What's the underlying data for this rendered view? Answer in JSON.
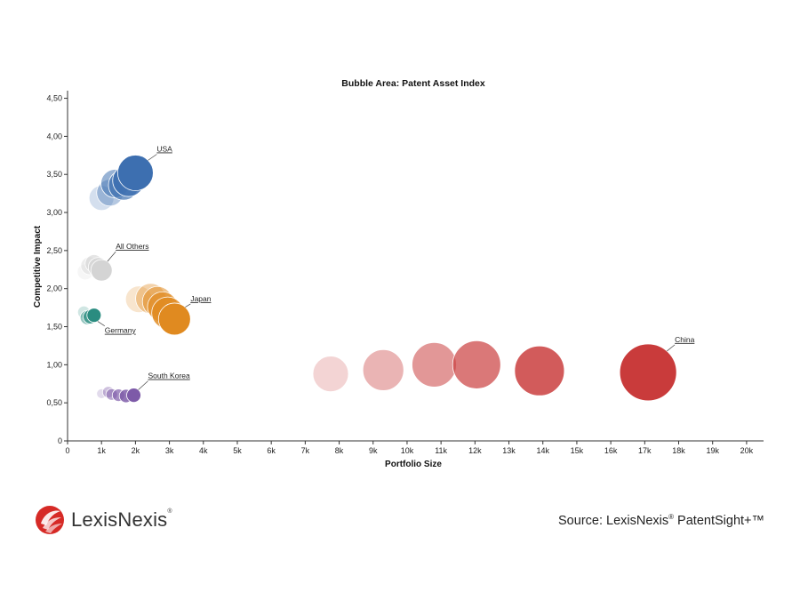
{
  "chart_data": {
    "type": "bubble",
    "title": "Bubble Area:  Patent Asset Index",
    "xlabel": "Portfolio Size",
    "ylabel": "Competitive Impact",
    "xlim": [
      0,
      20500
    ],
    "ylim": [
      0,
      4.6
    ],
    "x_ticks": [
      "0",
      "1k",
      "2k",
      "3k",
      "4k",
      "5k",
      "6k",
      "7k",
      "8k",
      "9k",
      "10k",
      "11k",
      "12k",
      "13k",
      "14k",
      "15k",
      "16k",
      "17k",
      "18k",
      "19k",
      "20k"
    ],
    "y_ticks": [
      "0",
      "0,50",
      "1,00",
      "1,50",
      "2,00",
      "2,50",
      "3,00",
      "3,50",
      "4,00",
      "4,50"
    ],
    "series": [
      {
        "name": "USA",
        "color": "#3d6fb0",
        "label_dx": 24,
        "label_dy": -24,
        "points": [
          {
            "x": 1000,
            "y": 3.19,
            "r": 14
          },
          {
            "x": 1250,
            "y": 3.26,
            "r": 15
          },
          {
            "x": 1400,
            "y": 3.38,
            "r": 16
          },
          {
            "x": 1650,
            "y": 3.36,
            "r": 17
          },
          {
            "x": 1800,
            "y": 3.42,
            "r": 18
          },
          {
            "x": 2000,
            "y": 3.52,
            "r": 20
          }
        ]
      },
      {
        "name": "All Others",
        "color": "#d4d4d4",
        "label_dx": 16,
        "label_dy": -24,
        "points": [
          {
            "x": 520,
            "y": 2.22,
            "r": 9
          },
          {
            "x": 650,
            "y": 2.3,
            "r": 10
          },
          {
            "x": 780,
            "y": 2.33,
            "r": 10
          },
          {
            "x": 900,
            "y": 2.28,
            "r": 11
          },
          {
            "x": 1000,
            "y": 2.24,
            "r": 12
          }
        ]
      },
      {
        "name": "Japan",
        "color": "#e08a20",
        "label_dx": 18,
        "label_dy": -20,
        "points": [
          {
            "x": 2100,
            "y": 1.86,
            "r": 15
          },
          {
            "x": 2450,
            "y": 1.87,
            "r": 17
          },
          {
            "x": 2650,
            "y": 1.83,
            "r": 17
          },
          {
            "x": 2800,
            "y": 1.76,
            "r": 17
          },
          {
            "x": 2950,
            "y": 1.68,
            "r": 18
          },
          {
            "x": 3150,
            "y": 1.6,
            "r": 18
          }
        ]
      },
      {
        "name": "Germany",
        "color": "#2a8c80",
        "label_dx": 12,
        "label_dy": 20,
        "points": [
          {
            "x": 480,
            "y": 1.69,
            "r": 7
          },
          {
            "x": 580,
            "y": 1.62,
            "r": 8
          },
          {
            "x": 670,
            "y": 1.63,
            "r": 8
          },
          {
            "x": 780,
            "y": 1.65,
            "r": 8
          }
        ]
      },
      {
        "name": "South Korea",
        "color": "#7d5aa8",
        "label_dx": 16,
        "label_dy": -19,
        "points": [
          {
            "x": 1000,
            "y": 0.62,
            "r": 5.5
          },
          {
            "x": 1200,
            "y": 0.64,
            "r": 6.5
          },
          {
            "x": 1300,
            "y": 0.61,
            "r": 6.5
          },
          {
            "x": 1500,
            "y": 0.6,
            "r": 7
          },
          {
            "x": 1720,
            "y": 0.59,
            "r": 7.5
          },
          {
            "x": 1950,
            "y": 0.6,
            "r": 8
          }
        ]
      },
      {
        "name": "China",
        "color": "#c93b3b",
        "label_dx": 30,
        "label_dy": -34,
        "points": [
          {
            "x": 7750,
            "y": 0.88,
            "r": 20
          },
          {
            "x": 9300,
            "y": 0.93,
            "r": 23
          },
          {
            "x": 10800,
            "y": 1.0,
            "r": 25
          },
          {
            "x": 12050,
            "y": 1.0,
            "r": 27
          },
          {
            "x": 13900,
            "y": 0.92,
            "r": 28
          },
          {
            "x": 17100,
            "y": 0.9,
            "r": 32
          }
        ]
      }
    ]
  },
  "footer": {
    "brand": "LexisNexis",
    "registered": "®",
    "source_prefix": "Source: LexisNexis",
    "source_registered": "®",
    "source_suffix": " PatentSight+™"
  }
}
